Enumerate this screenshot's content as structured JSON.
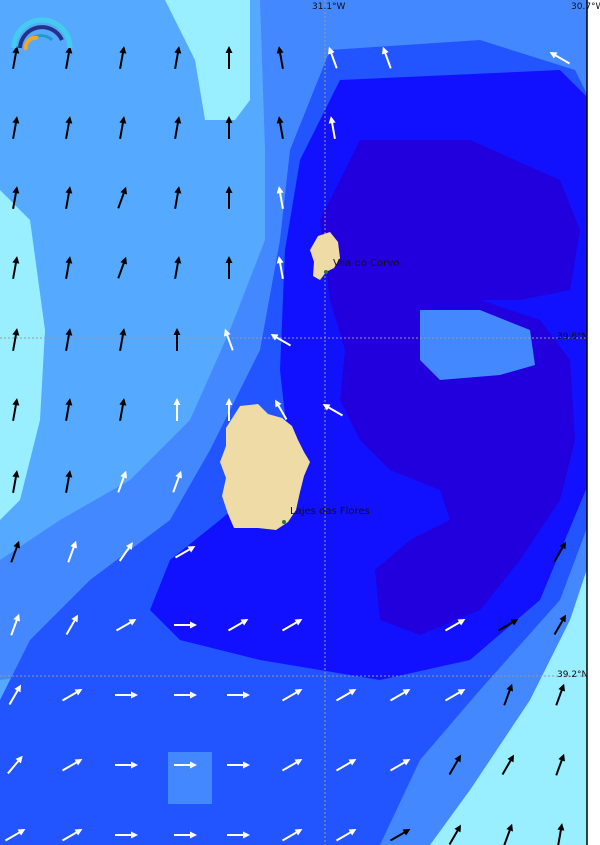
{
  "map": {
    "grid_labels": {
      "lon_top_1": "31.1°W",
      "lon_top_2": "30.7°W",
      "lat_1": "39.6°N",
      "lat_2": "39.2°N"
    },
    "places": [
      {
        "name": "Vila do Corvo"
      },
      {
        "name": "Lajes das Flores"
      }
    ],
    "colors": {
      "land": "#eedba5",
      "wind_very_light": "#99eeff",
      "wind_light": "#55aaff",
      "wind_moderate": "#4488ff",
      "wind_fresh": "#2255ff",
      "wind_strong": "#1111ff",
      "wind_very_strong": "#2200dd",
      "arrow_dark": "#000000",
      "arrow_light": "#ffffff"
    },
    "logo_icon": "weather-arc-logo",
    "wind_arrows": [
      [
        "b10",
        "b10",
        "b10",
        "b10",
        "b0",
        "b-10",
        "w-20",
        "w-20",
        "",
        "",
        "w-60"
      ],
      [
        "b10",
        "b10",
        "b10",
        "b10",
        "b0",
        "b-10",
        "w-10",
        "",
        "",
        "",
        ""
      ],
      [
        "b10",
        "b10",
        "b20",
        "b10",
        "b0",
        "w-10",
        "",
        "",
        "",
        "",
        ""
      ],
      [
        "b10",
        "b10",
        "b20",
        "b10",
        "b0",
        "w-10",
        "",
        "",
        "",
        "",
        ""
      ],
      [
        "b10",
        "b10",
        "b10",
        "b0",
        "w-20",
        "w-60",
        "",
        "",
        "",
        "",
        ""
      ],
      [
        "b10",
        "b10",
        "b10",
        "w0",
        "w0",
        "w-30",
        "w-60",
        "",
        "",
        "",
        ""
      ],
      [
        "b10",
        "b10",
        "w20",
        "w20",
        "",
        "",
        "",
        "",
        "",
        "",
        ""
      ],
      [
        "b20",
        "w20",
        "w35",
        "w60",
        "",
        "",
        "",
        "",
        "",
        "",
        "b30"
      ],
      [
        "w20",
        "w30",
        "w60",
        "w90",
        "w60",
        "w60",
        "",
        "",
        "w60",
        "b60",
        "b30"
      ],
      [
        "w30",
        "w60",
        "w90",
        "w90",
        "w90",
        "w60",
        "w60",
        "w60",
        "w60",
        "b20",
        "b20"
      ],
      [
        "w40",
        "w60",
        "w90",
        "w90",
        "w90",
        "w60",
        "w60",
        "w60",
        "b30",
        "b30",
        "b20"
      ],
      [
        "w60",
        "w60",
        "w90",
        "w90",
        "w90",
        "w60",
        "w60",
        "b60",
        "b30",
        "b20",
        "b10"
      ]
    ]
  }
}
